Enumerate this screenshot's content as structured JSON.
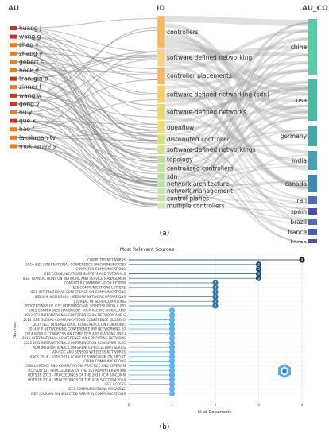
{
  "sankey": {
    "col_left": "AU",
    "col_mid": "ID",
    "col_right": "AU_CO",
    "authors": [
      {
        "name": "huang j",
        "color": "#c0392b"
      },
      {
        "name": "wang g",
        "color": "#c0392b"
      },
      {
        "name": "zhao y",
        "color": "#e67e22"
      },
      {
        "name": "zhang y",
        "color": "#e67e22"
      },
      {
        "name": "gebert s",
        "color": "#e67e22"
      },
      {
        "name": "hock d",
        "color": "#e67e22"
      },
      {
        "name": "tran-gia p",
        "color": "#c0392b"
      },
      {
        "name": "zinner t",
        "color": "#e67e22"
      },
      {
        "name": "wang w",
        "color": "#c0392b"
      },
      {
        "name": "gong y",
        "color": "#c0392b"
      },
      {
        "name": "hu y",
        "color": "#e67e22"
      },
      {
        "name": "que x",
        "color": "#c0392b"
      },
      {
        "name": "hao f",
        "color": "#e67e22"
      },
      {
        "name": "lakshman tv",
        "color": "#e67e22"
      },
      {
        "name": "mukherjee s",
        "color": "#e67e22"
      }
    ],
    "keywords": [
      {
        "name": "controllers",
        "color": "#f4b860"
      },
      {
        "name": "software defined networking",
        "color": "#f7d08a"
      },
      {
        "name": "controller placements",
        "color": "#f4b860"
      },
      {
        "name": "software defined networking (sdn)",
        "color": "#f7d06a"
      },
      {
        "name": "software-defined networks",
        "color": "#e8d870"
      },
      {
        "name": "openflow",
        "color": "#f0dc70"
      },
      {
        "name": "distributed controller",
        "color": "#d8e080"
      },
      {
        "name": "software-defined networkings",
        "color": "#d6e48a"
      },
      {
        "name": "topology",
        "color": "#b8e0a0"
      },
      {
        "name": "centralized controllers",
        "color": "#c4e49a"
      },
      {
        "name": "sdn",
        "color": "#b2e0a8"
      },
      {
        "name": "network architecture",
        "color": "#bce2a2"
      },
      {
        "name": "network management",
        "color": "#c8e8a6"
      },
      {
        "name": "control planes",
        "color": "#c0e6ae"
      },
      {
        "name": "multiple controllers",
        "color": "#cfe9b0"
      }
    ],
    "countries": [
      {
        "name": "china",
        "color": "#5cc8a8"
      },
      {
        "name": "usa",
        "color": "#4fb8a4"
      },
      {
        "name": "germany",
        "color": "#47a8a8"
      },
      {
        "name": "india",
        "color": "#4aa0b0"
      },
      {
        "name": "canada",
        "color": "#3f8ab2"
      },
      {
        "name": "iran",
        "color": "#4a70b8"
      },
      {
        "name": "spain",
        "color": "#4b4fa8"
      },
      {
        "name": "brazil",
        "color": "#4e6cba"
      },
      {
        "name": "france",
        "color": "#4a5cb4"
      },
      {
        "name": "korea",
        "color": "#5a4aa0"
      }
    ],
    "caption": "(a)"
  },
  "chart_data": {
    "type": "lollipop",
    "title": "Most Relevant Sources",
    "xlabel": "N. of Documents",
    "ylabel": "Sources",
    "xlim": [
      0,
      4
    ],
    "xticks": [
      "0",
      "1",
      "2",
      "3",
      "4"
    ],
    "categories": [
      "COMPUTER NETWORKS",
      "2016 IEEE INTERNATIONAL CONFERENCE ON COMMUNICATIO",
      "COMPUTER COMMUNICATIONS",
      "IEEE COMMUNICATIONS SURVEYS AND TUTORIALS",
      "IEEE TRANSACTIONS ON NETWORK AND SERVICE MANAGEMEN",
      "COMPUTER COMMUNICATION REVIEW",
      "IEEE COMMUNICATIONS LETTERS",
      "IEEE INTERNATIONAL CONFERENCE ON COMMUNICATIONS",
      "IEEE/IFIP NOMS 2014 - IEEE/IFIP NETWORK OPERATIONS",
      "JOURNAL OF SUPERCOMPUTING",
      "PROCEEDINGS OF IEEE INTERNATIONAL SYMPOSIUM ON A WO",
      "2012 CONFERENCE HANDBOOK - ASIA-PACIFIC SIGNAL AND",
      "2013 9TH INTERNATIONAL CONFERENCE ON NETWORK AND S",
      "2014 IEEE GLOBAL COMMUNICATIONS CONFERENCE GLOBECO",
      "2014 IEEE INTERNATIONAL CONFERENCE ON COMMUNIC",
      "2014 IFIP NETWORKING CONFERENCE IFIP NETWORKING 20",
      "2014 WORLD CONGRESS ON COMPUTER APPLICATIONS AND I",
      "2015 INTERNATIONAL CONFERENCE ON COMPUTING NETWORK",
      "2022 2ND INTERNATIONAL CONFERENCE ON CONSUMER ELEC",
      "ACM INTERNATIONAL CONFERENCE PROCEEDING SERIES",
      "AD-HOC AND SENSOR WIRELESS NETWORKS",
      "ANCS 2014 - 10TH 2014 ACM/IEEE SYMPOSIUM ON ARCHIT",
      "CHINA COMMUNICATIONS",
      "CONCURRENCY AND COMPUTATION: PRACTICE AND EXPERIEN",
      "HOTSDN'13 - PROCEEDINGS OF THE 1ST ACM INTERNATION",
      "HOTSDN 2013 - PROCEEDINGS OF THE 2013 ACM SIGCOMM",
      "HOTSDN 2014 - PROCEEDINGS OF THE ACM SIGCOMM 2014",
      "IEEE ACCESS",
      "IEEE COMMUNICATIONS MAGAZINE",
      "IEEE JOURNAL ON SELECTED AREAS IN COMMUNICATIONS"
    ],
    "values": [
      4,
      3,
      3,
      3,
      3,
      2,
      2,
      2,
      2,
      2,
      2,
      1,
      1,
      1,
      1,
      1,
      1,
      1,
      1,
      1,
      1,
      1,
      1,
      1,
      1,
      1,
      1,
      1,
      1,
      1
    ],
    "colors": {
      "4": "#132b43",
      "3": "#1f4a6e",
      "2": "#3373a8",
      "1": "#56b1f7"
    },
    "caption": "(b)"
  }
}
